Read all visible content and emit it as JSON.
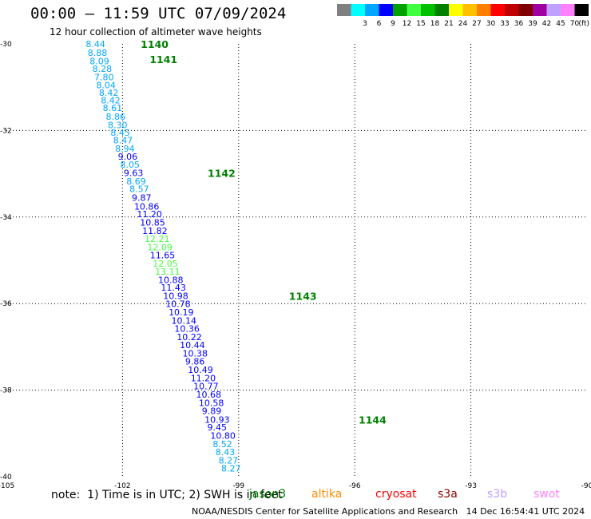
{
  "header": {
    "title": "00:00 — 11:59 UTC 07/09/2024",
    "subtitle": "12 hour collection of altimeter wave heights"
  },
  "legend": {
    "unit": "(ft)",
    "swatches": [
      {
        "color": "#808080",
        "label": ""
      },
      {
        "color": "#00ffff",
        "label": "3"
      },
      {
        "color": "#00a6ff",
        "label": "6"
      },
      {
        "color": "#0000ff",
        "label": "9"
      },
      {
        "color": "#00a000",
        "label": "12"
      },
      {
        "color": "#40ff40",
        "label": "15"
      },
      {
        "color": "#00c000",
        "label": "18"
      },
      {
        "color": "#008000",
        "label": "21"
      },
      {
        "color": "#ffff00",
        "label": "24"
      },
      {
        "color": "#ffc000",
        "label": "27"
      },
      {
        "color": "#ff8000",
        "label": "30"
      },
      {
        "color": "#ff0000",
        "label": "33"
      },
      {
        "color": "#c00000",
        "label": "36"
      },
      {
        "color": "#800000",
        "label": "39"
      },
      {
        "color": "#a000a0",
        "label": "42"
      },
      {
        "color": "#c0a0ff",
        "label": "45"
      },
      {
        "color": "#ff80ff",
        "label": "70"
      },
      {
        "color": "#000000",
        "label": ""
      }
    ]
  },
  "footer": {
    "note": "note:  1) Time is in UTC; 2) SWH is in feet",
    "satellites": [
      {
        "name": "jason3",
        "color": "#008000"
      },
      {
        "name": "altika",
        "color": "#ff8c00"
      },
      {
        "name": "cryosat",
        "color": "#ff0000"
      },
      {
        "name": "s3a",
        "color": "#8b0000"
      },
      {
        "name": "s3b",
        "color": "#c0a0ff"
      },
      {
        "name": "swot",
        "color": "#ff80ff"
      }
    ],
    "credit": "NOAA/NESDIS Center for Satellite Applications and Research   14 Dec 16:54:41 UTC 2024"
  },
  "chart_data": {
    "type": "scatter",
    "title": "00:00 — 11:59 UTC 07/09/2024",
    "subtitle": "12 hour collection of altimeter wave heights",
    "xlabel": "",
    "ylabel": "",
    "xlim": [
      -105,
      -90
    ],
    "ylim": [
      -40,
      -30
    ],
    "x_ticks": [
      "-105",
      "-102",
      "-99",
      "-96",
      "-93",
      "-90"
    ],
    "y_ticks": [
      "-30",
      "-32",
      "-34",
      "-36",
      "-38",
      "-40"
    ],
    "grid": true,
    "unit": "ft",
    "series": [
      {
        "name": "jason3",
        "points": [
          {
            "lon": -102.95,
            "lat": -30.0,
            "swh": "8.44",
            "color": "#00a6ff"
          },
          {
            "lon": -102.9,
            "lat": -30.2,
            "swh": "8.88",
            "color": "#00a6ff"
          },
          {
            "lon": -102.85,
            "lat": -30.4,
            "swh": "8.09",
            "color": "#00a6ff"
          },
          {
            "lon": -102.78,
            "lat": -30.57,
            "swh": "8.28",
            "color": "#00a6ff"
          },
          {
            "lon": -102.73,
            "lat": -30.77,
            "swh": "7.80",
            "color": "#00a6ff"
          },
          {
            "lon": -102.68,
            "lat": -30.95,
            "swh": "8.04",
            "color": "#00a6ff"
          },
          {
            "lon": -102.61,
            "lat": -31.13,
            "swh": "8.42",
            "color": "#00a6ff"
          },
          {
            "lon": -102.56,
            "lat": -31.3,
            "swh": "8.42",
            "color": "#00a6ff"
          },
          {
            "lon": -102.51,
            "lat": -31.48,
            "swh": "8.61",
            "color": "#00a6ff"
          },
          {
            "lon": -102.43,
            "lat": -31.68,
            "swh": "8.86",
            "color": "#00a6ff"
          },
          {
            "lon": -102.38,
            "lat": -31.87,
            "swh": "8.30",
            "color": "#00a6ff"
          },
          {
            "lon": -102.31,
            "lat": -32.05,
            "swh": "8.45",
            "color": "#00a6ff"
          },
          {
            "lon": -102.24,
            "lat": -32.22,
            "swh": "8.47",
            "color": "#00a6ff"
          },
          {
            "lon": -102.19,
            "lat": -32.42,
            "swh": "8.94",
            "color": "#00a6ff"
          },
          {
            "lon": -102.12,
            "lat": -32.6,
            "swh": "9.06",
            "color": "#0000ff"
          },
          {
            "lon": -102.06,
            "lat": -32.79,
            "swh": "8.05",
            "color": "#00a6ff"
          },
          {
            "lon": -101.97,
            "lat": -32.98,
            "swh": "9.63",
            "color": "#0000ff"
          },
          {
            "lon": -101.9,
            "lat": -33.17,
            "swh": "8.69",
            "color": "#00a6ff"
          },
          {
            "lon": -101.82,
            "lat": -33.35,
            "swh": "8.57",
            "color": "#00a6ff"
          },
          {
            "lon": -101.76,
            "lat": -33.55,
            "swh": "9.87",
            "color": "#0000ff"
          },
          {
            "lon": -101.7,
            "lat": -33.75,
            "swh": "10.86",
            "color": "#0000ff"
          },
          {
            "lon": -101.63,
            "lat": -33.93,
            "swh": "11.20",
            "color": "#0000ff"
          },
          {
            "lon": -101.55,
            "lat": -34.12,
            "swh": "10.85",
            "color": "#0000ff"
          },
          {
            "lon": -101.49,
            "lat": -34.32,
            "swh": "11.82",
            "color": "#0000ff"
          },
          {
            "lon": -101.43,
            "lat": -34.5,
            "swh": "12.21",
            "color": "#40ff40"
          },
          {
            "lon": -101.36,
            "lat": -34.7,
            "swh": "12.09",
            "color": "#40ff40"
          },
          {
            "lon": -101.29,
            "lat": -34.88,
            "swh": "11.65",
            "color": "#0000ff"
          },
          {
            "lon": -101.22,
            "lat": -35.07,
            "swh": "12.05",
            "color": "#40ff40"
          },
          {
            "lon": -101.16,
            "lat": -35.26,
            "swh": "13.11",
            "color": "#40ff40"
          },
          {
            "lon": -101.08,
            "lat": -35.45,
            "swh": "10.88",
            "color": "#0000ff"
          },
          {
            "lon": -101.01,
            "lat": -35.63,
            "swh": "11.43",
            "color": "#0000ff"
          },
          {
            "lon": -100.95,
            "lat": -35.82,
            "swh": "10.98",
            "color": "#0000ff"
          },
          {
            "lon": -100.89,
            "lat": -36.01,
            "swh": "10.78",
            "color": "#0000ff"
          },
          {
            "lon": -100.81,
            "lat": -36.2,
            "swh": "10.19",
            "color": "#0000ff"
          },
          {
            "lon": -100.74,
            "lat": -36.39,
            "swh": "10.14",
            "color": "#0000ff"
          },
          {
            "lon": -100.66,
            "lat": -36.58,
            "swh": "10.36",
            "color": "#0000ff"
          },
          {
            "lon": -100.6,
            "lat": -36.77,
            "swh": "10.22",
            "color": "#0000ff"
          },
          {
            "lon": -100.52,
            "lat": -36.96,
            "swh": "10.44",
            "color": "#0000ff"
          },
          {
            "lon": -100.45,
            "lat": -37.15,
            "swh": "10.38",
            "color": "#0000ff"
          },
          {
            "lon": -100.38,
            "lat": -37.33,
            "swh": "9.86",
            "color": "#0000ff"
          },
          {
            "lon": -100.31,
            "lat": -37.53,
            "swh": "10.49",
            "color": "#0000ff"
          },
          {
            "lon": -100.24,
            "lat": -37.72,
            "swh": "11.20",
            "color": "#0000ff"
          },
          {
            "lon": -100.17,
            "lat": -37.91,
            "swh": "10.77",
            "color": "#0000ff"
          },
          {
            "lon": -100.1,
            "lat": -38.1,
            "swh": "10.68",
            "color": "#0000ff"
          },
          {
            "lon": -100.03,
            "lat": -38.29,
            "swh": "10.58",
            "color": "#0000ff"
          },
          {
            "lon": -99.95,
            "lat": -38.48,
            "swh": "9.89",
            "color": "#0000ff"
          },
          {
            "lon": -99.88,
            "lat": -38.68,
            "swh": "10.93",
            "color": "#0000ff"
          },
          {
            "lon": -99.81,
            "lat": -38.86,
            "swh": "9.45",
            "color": "#0000ff"
          },
          {
            "lon": -99.73,
            "lat": -39.05,
            "swh": "10.80",
            "color": "#0000ff"
          },
          {
            "lon": -99.67,
            "lat": -39.24,
            "swh": "8.52",
            "color": "#00a6ff"
          },
          {
            "lon": -99.6,
            "lat": -39.43,
            "swh": "8.43",
            "color": "#00a6ff"
          },
          {
            "lon": -99.52,
            "lat": -39.62,
            "swh": "8.27",
            "color": "#00a6ff"
          },
          {
            "lon": -99.45,
            "lat": -39.81,
            "swh": "8.27",
            "color": "#00a6ff"
          }
        ]
      }
    ],
    "time_labels": [
      {
        "text": "1140",
        "lon": -101.53,
        "lat": -30.0
      },
      {
        "text": "1141",
        "lon": -101.3,
        "lat": -30.35
      },
      {
        "text": "1142",
        "lon": -99.8,
        "lat": -32.98
      },
      {
        "text": "1143",
        "lon": -97.7,
        "lat": -35.82
      },
      {
        "text": "1144",
        "lon": -95.9,
        "lat": -38.68
      }
    ]
  }
}
